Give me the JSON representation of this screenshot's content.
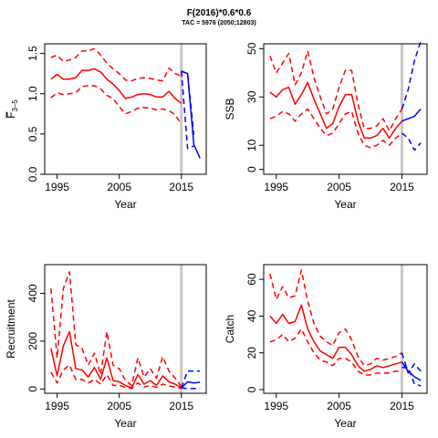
{
  "title": "F(2016)*0.6*0.6",
  "subtitle": "TAC = 5976 (2050;12803)",
  "chart_data": [
    {
      "type": "line",
      "ylabel_base": "F",
      "ylabel_sub": "3–5",
      "xlabel": "Year",
      "xlim": [
        1993,
        2019
      ],
      "ylim": [
        0,
        1.62
      ],
      "xticks": [
        1995,
        2005,
        2015
      ],
      "yticks": [
        0.0,
        0.5,
        1.0,
        1.5
      ],
      "ytick_labels": [
        "0.0",
        "0.5",
        "1.0",
        "1.5"
      ],
      "vline_x": 2015,
      "series": [
        {
          "role": "historical-median",
          "color": "#ff0000",
          "dash": false,
          "x": [
            1994,
            1995,
            1996,
            1997,
            1998,
            1999,
            2000,
            2001,
            2002,
            2003,
            2004,
            2005,
            2006,
            2007,
            2008,
            2009,
            2010,
            2011,
            2012,
            2013,
            2014,
            2015
          ],
          "y": [
            1.18,
            1.24,
            1.18,
            1.18,
            1.2,
            1.29,
            1.29,
            1.31,
            1.27,
            1.18,
            1.12,
            1.04,
            0.94,
            0.96,
            0.99,
            1.0,
            0.99,
            0.96,
            0.96,
            1.03,
            0.94,
            0.88
          ]
        },
        {
          "role": "historical-upper",
          "color": "#ff0000",
          "dash": true,
          "x": [
            1994,
            1995,
            1996,
            1997,
            1998,
            1999,
            2000,
            2001,
            2002,
            2003,
            2004,
            2005,
            2006,
            2007,
            2008,
            2009,
            2010,
            2011,
            2012,
            2013,
            2014,
            2015
          ],
          "y": [
            1.45,
            1.48,
            1.4,
            1.42,
            1.45,
            1.53,
            1.53,
            1.56,
            1.48,
            1.38,
            1.31,
            1.25,
            1.17,
            1.16,
            1.19,
            1.2,
            1.19,
            1.17,
            1.16,
            1.32,
            1.25,
            1.22
          ]
        },
        {
          "role": "historical-lower",
          "color": "#ff0000",
          "dash": true,
          "x": [
            1994,
            1995,
            1996,
            1997,
            1998,
            1999,
            2000,
            2001,
            2002,
            2003,
            2004,
            2005,
            2006,
            2007,
            2008,
            2009,
            2010,
            2011,
            2012,
            2013,
            2014,
            2015
          ],
          "y": [
            0.95,
            1.01,
            0.99,
            1.0,
            1.01,
            1.09,
            1.1,
            1.1,
            1.06,
            0.98,
            0.94,
            0.84,
            0.75,
            0.78,
            0.82,
            0.83,
            0.82,
            0.8,
            0.81,
            0.79,
            0.74,
            0.62
          ]
        },
        {
          "role": "projection-median",
          "color": "#0000ff",
          "dash": false,
          "x": [
            2015,
            2016,
            2017,
            2018
          ],
          "y": [
            1.28,
            1.25,
            0.37,
            0.2
          ]
        },
        {
          "role": "projection-upper",
          "color": "#0000ff",
          "dash": true,
          "x": [
            2015,
            2016,
            2017
          ],
          "y": [
            1.28,
            1.25,
            0.49
          ]
        },
        {
          "role": "projection-lower",
          "color": "#0000ff",
          "dash": true,
          "x": [
            2015,
            2016,
            2017
          ],
          "y": [
            1.28,
            0.32,
            0.35
          ]
        }
      ]
    },
    {
      "type": "line",
      "ylabel": "SSB",
      "xlabel": "Year",
      "xlim": [
        1993,
        2019
      ],
      "ylim": [
        -2,
        52
      ],
      "xticks": [
        1995,
        2005,
        2015
      ],
      "yticks": [
        0,
        10,
        30,
        50
      ],
      "ytick_labels": [
        "0",
        "10",
        "30",
        "50"
      ],
      "vline_x": 2015,
      "series": [
        {
          "role": "historical-median",
          "color": "#ff0000",
          "dash": false,
          "x": [
            1994,
            1995,
            1996,
            1997,
            1998,
            1999,
            2000,
            2001,
            2002,
            2003,
            2004,
            2005,
            2006,
            2007,
            2008,
            2009,
            2010,
            2011,
            2012,
            2013,
            2014,
            2015
          ],
          "y": [
            32,
            30,
            33,
            34,
            27,
            31,
            36,
            29,
            23,
            17,
            19,
            26,
            31,
            31,
            20,
            13,
            13,
            14,
            17,
            13,
            17,
            20
          ]
        },
        {
          "role": "historical-upper",
          "color": "#ff0000",
          "dash": true,
          "x": [
            1994,
            1995,
            1996,
            1997,
            1998,
            1999,
            2000,
            2001,
            2002,
            2003,
            2004,
            2005,
            2006,
            2007,
            2008,
            2009,
            2010,
            2011,
            2012,
            2013,
            2014,
            2015
          ],
          "y": [
            47,
            40,
            44,
            48,
            35,
            40,
            49,
            38,
            30,
            23,
            25,
            34,
            41,
            41,
            27,
            17,
            17,
            18,
            21,
            16,
            21,
            25
          ]
        },
        {
          "role": "historical-lower",
          "color": "#ff0000",
          "dash": true,
          "x": [
            1994,
            1995,
            1996,
            1997,
            1998,
            1999,
            2000,
            2001,
            2002,
            2003,
            2004,
            2005,
            2006,
            2007,
            2008,
            2009,
            2010,
            2011,
            2012,
            2013,
            2014,
            2015
          ],
          "y": [
            21,
            22,
            24,
            23,
            20,
            23,
            25,
            21,
            17,
            14,
            15,
            19,
            23,
            24,
            15,
            10,
            9,
            10,
            12,
            10,
            13,
            15
          ]
        },
        {
          "role": "projection-median",
          "color": "#0000ff",
          "dash": false,
          "x": [
            2015,
            2016,
            2017,
            2018
          ],
          "y": [
            20,
            21,
            22,
            25
          ]
        },
        {
          "role": "projection-upper",
          "color": "#0000ff",
          "dash": true,
          "x": [
            2015,
            2016,
            2017,
            2018
          ],
          "y": [
            25,
            33,
            45,
            53
          ]
        },
        {
          "role": "projection-lower",
          "color": "#0000ff",
          "dash": true,
          "x": [
            2015,
            2016,
            2017,
            2018
          ],
          "y": [
            15,
            13,
            8,
            11
          ]
        }
      ]
    },
    {
      "type": "line",
      "ylabel": "Recruitment",
      "xlabel": "Year",
      "xlim": [
        1993,
        2019
      ],
      "ylim": [
        -18,
        520
      ],
      "xticks": [
        1995,
        2005,
        2015
      ],
      "yticks": [
        0,
        200,
        400
      ],
      "ytick_labels": [
        "0",
        "200",
        "400"
      ],
      "vline_x": 2015,
      "series": [
        {
          "role": "historical-median",
          "color": "#ff0000",
          "dash": false,
          "x": [
            1994,
            1995,
            1996,
            1997,
            1998,
            1999,
            2000,
            2001,
            2002,
            2003,
            2004,
            2005,
            2006,
            2007,
            2008,
            2009,
            2010,
            2011,
            2012,
            2013,
            2014,
            2015
          ],
          "y": [
            170,
            55,
            180,
            240,
            85,
            80,
            50,
            90,
            40,
            130,
            35,
            30,
            15,
            5,
            60,
            20,
            35,
            15,
            55,
            30,
            20,
            5
          ]
        },
        {
          "role": "historical-upper",
          "color": "#ff0000",
          "dash": true,
          "x": [
            1994,
            1995,
            1996,
            1997,
            1998,
            1999,
            2000,
            2001,
            2002,
            2003,
            2004,
            2005,
            2006,
            2007,
            2008,
            2009,
            2010,
            2011,
            2012,
            2013,
            2014,
            2015
          ],
          "y": [
            420,
            130,
            420,
            490,
            185,
            170,
            100,
            150,
            60,
            240,
            100,
            85,
            35,
            15,
            130,
            50,
            85,
            45,
            135,
            75,
            45,
            10
          ]
        },
        {
          "role": "historical-lower",
          "color": "#ff0000",
          "dash": true,
          "x": [
            1994,
            1995,
            1996,
            1997,
            1998,
            1999,
            2000,
            2001,
            2002,
            2003,
            2004,
            2005,
            2006,
            2007,
            2008,
            2009,
            2010,
            2011,
            2012,
            2013,
            2014,
            2015
          ],
          "y": [
            70,
            25,
            80,
            100,
            40,
            40,
            25,
            40,
            20,
            60,
            15,
            15,
            7,
            2,
            25,
            8,
            15,
            6,
            20,
            12,
            8,
            2
          ]
        },
        {
          "role": "projection-median",
          "color": "#0000ff",
          "dash": false,
          "x": [
            2015,
            2016,
            2017,
            2018
          ],
          "y": [
            5,
            30,
            25,
            28
          ]
        },
        {
          "role": "projection-upper",
          "color": "#0000ff",
          "dash": true,
          "x": [
            2015,
            2016,
            2017,
            2018
          ],
          "y": [
            5,
            75,
            75,
            75
          ]
        },
        {
          "role": "projection-lower",
          "color": "#0000ff",
          "dash": true,
          "x": [
            2015,
            2016,
            2017,
            2018
          ],
          "y": [
            5,
            2,
            2,
            2
          ]
        }
      ]
    },
    {
      "type": "line",
      "ylabel": "Catch",
      "xlabel": "Year",
      "xlim": [
        1993,
        2019
      ],
      "ylim": [
        -2,
        68
      ],
      "xticks": [
        1995,
        2005,
        2015
      ],
      "yticks": [
        0,
        20,
        40,
        60
      ],
      "ytick_labels": [
        "0",
        "20",
        "40",
        "60"
      ],
      "vline_x": 2015,
      "series": [
        {
          "role": "historical-median",
          "color": "#ff0000",
          "dash": false,
          "x": [
            1994,
            1995,
            1996,
            1997,
            1998,
            1999,
            2000,
            2001,
            2002,
            2003,
            2004,
            2005,
            2006,
            2007,
            2008,
            2009,
            2010,
            2011,
            2012,
            2013,
            2014,
            2015
          ],
          "y": [
            40,
            36,
            41,
            36,
            37,
            46,
            33,
            26,
            21,
            19,
            17,
            23,
            23,
            19,
            13,
            10,
            11,
            13,
            12,
            13,
            14,
            15
          ]
        },
        {
          "role": "historical-upper",
          "color": "#ff0000",
          "dash": true,
          "x": [
            1994,
            1995,
            1996,
            1997,
            1998,
            1999,
            2000,
            2001,
            2002,
            2003,
            2004,
            2005,
            2006,
            2007,
            2008,
            2009,
            2010,
            2011,
            2012,
            2013,
            2014,
            2015
          ],
          "y": [
            63,
            49,
            56,
            50,
            51,
            65,
            48,
            36,
            29,
            26,
            24,
            31,
            33,
            27,
            18,
            13,
            14,
            17,
            16,
            17,
            18,
            20
          ]
        },
        {
          "role": "historical-lower",
          "color": "#ff0000",
          "dash": true,
          "x": [
            1994,
            1995,
            1996,
            1997,
            1998,
            1999,
            2000,
            2001,
            2002,
            2003,
            2004,
            2005,
            2006,
            2007,
            2008,
            2009,
            2010,
            2011,
            2012,
            2013,
            2014,
            2015
          ],
          "y": [
            26,
            27,
            30,
            26,
            28,
            33,
            26,
            20,
            16,
            15,
            13,
            17,
            17,
            15,
            10,
            8,
            8,
            9,
            9,
            9,
            10,
            10
          ]
        },
        {
          "role": "projection-median",
          "color": "#0000ff",
          "dash": false,
          "x": [
            2015,
            2016,
            2017,
            2018
          ],
          "y": [
            15,
            10,
            7,
            5
          ]
        },
        {
          "role": "projection-upper",
          "color": "#0000ff",
          "dash": true,
          "x": [
            2015,
            2016,
            2017,
            2018
          ],
          "y": [
            20,
            9,
            14,
            10
          ]
        },
        {
          "role": "projection-lower",
          "color": "#0000ff",
          "dash": true,
          "x": [
            2015,
            2016,
            2017,
            2018
          ],
          "y": [
            12,
            12,
            3,
            2
          ]
        }
      ]
    }
  ]
}
